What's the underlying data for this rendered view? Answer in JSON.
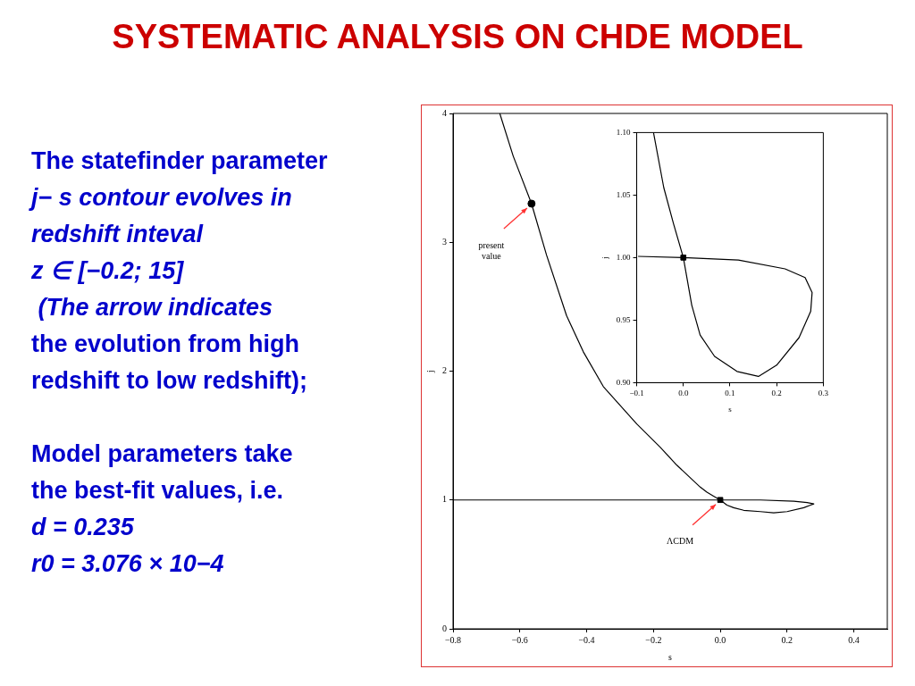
{
  "chart_data": [
    {
      "type": "line",
      "title": "SYSTEMATIC ANALYSIS ON CHDE MODEL",
      "xlabel": "s",
      "ylabel": "j",
      "annotations": [
        "The statefinder parameter",
        "j− s contour evolves in",
        "redshift inteval",
        "z ∈ [−0.2; 15]",
        " (The arrow indicates",
        "the evolution from high",
        "redshift to low redshift);",
        "Model parameters take",
        "the best-fit values, i.e.",
        "d = 0.235",
        "r0 = 3.076 × 10−4",
        {
          "text": "present value",
          "x": -0.565,
          "y": 3.3
        },
        {
          "text": "ΛCDM",
          "x": 0,
          "y": 1
        }
      ],
      "xlim": [
        -0.8,
        0.5
      ],
      "xticks": [
        {
          "value": -0.8,
          "label": "−0.8"
        },
        {
          "value": -0.6,
          "label": "−0.6"
        },
        {
          "value": -0.4,
          "label": "−0.4"
        },
        {
          "value": -0.2,
          "label": "−0.2"
        },
        {
          "value": 0,
          "label": "0.0"
        },
        {
          "value": 0.2,
          "label": "0.2"
        },
        {
          "value": 0.4,
          "label": "0.4"
        }
      ],
      "ylim": [
        0,
        4
      ],
      "yticks": [
        0,
        1,
        2,
        3,
        4
      ],
      "grid": false,
      "legend": false,
      "series": [
        {
          "type": "line",
          "color": "#000000",
          "marker": "none",
          "x": [
            -0.8,
            -0.5,
            -0.2,
            0,
            0.12,
            0.22,
            0.26,
            0.28,
            0.27,
            0.25,
            0.2,
            0.16,
            0.12,
            0.07,
            0.04,
            0.02,
            0,
            -0.02,
            -0.04,
            -0.06,
            -0.13,
            -0.18,
            -0.25,
            -0.35,
            -0.41,
            -0.46,
            -0.52,
            -0.565,
            -0.62,
            -0.66
          ],
          "values": [
            1,
            1,
            1,
            1,
            1,
            0.99,
            0.98,
            0.97,
            0.96,
            0.94,
            0.91,
            0.9,
            0.91,
            0.92,
            0.94,
            0.96,
            1,
            1.03,
            1.06,
            1.1,
            1.27,
            1.41,
            1.59,
            1.88,
            2.15,
            2.43,
            2.9,
            3.3,
            3.67,
            4
          ]
        },
        {
          "type": "scatter",
          "color": "#000000",
          "marker": "circle",
          "x": [
            -0.565
          ],
          "values": [
            3.3
          ]
        },
        {
          "type": "scatter",
          "color": "#000000",
          "marker": "square",
          "x": [
            0
          ],
          "values": [
            1
          ]
        }
      ]
    },
    {
      "type": "line",
      "xlabel": "s",
      "ylabel": "j",
      "xlim": [
        -0.1,
        0.3
      ],
      "xticks": [
        {
          "value": -0.1,
          "label": "−0.1"
        },
        {
          "value": 0,
          "label": "0.0"
        },
        {
          "value": 0.1,
          "label": "0.1"
        },
        {
          "value": 0.2,
          "label": "0.2"
        },
        {
          "value": 0.3,
          "label": "0.3"
        }
      ],
      "ylim": [
        0.9,
        1.1
      ],
      "yticks": [
        {
          "value": 0.9,
          "label": "0.90"
        },
        {
          "value": 0.95,
          "label": "0.95"
        },
        {
          "value": 1,
          "label": "1.00"
        },
        {
          "value": 1.05,
          "label": "1.05"
        },
        {
          "value": 1.1,
          "label": "1.10"
        }
      ],
      "grid": false,
      "legend": false,
      "series": [
        {
          "type": "line",
          "color": "#000000",
          "marker": "none",
          "x": [
            -0.097,
            0,
            0.118,
            0.218,
            0.261,
            0.276,
            0.273,
            0.248,
            0.2,
            0.161,
            0.115,
            0.067,
            0.036,
            0.018,
            0,
            -0.021,
            -0.042,
            -0.064
          ],
          "values": [
            1.001,
            1,
            0.998,
            0.991,
            0.984,
            0.972,
            0.957,
            0.936,
            0.914,
            0.905,
            0.909,
            0.921,
            0.938,
            0.962,
            1,
            1.027,
            1.056,
            1.1
          ]
        },
        {
          "type": "scatter",
          "color": "#000000",
          "marker": "square",
          "x": [
            0
          ],
          "values": [
            1
          ]
        }
      ]
    }
  ]
}
